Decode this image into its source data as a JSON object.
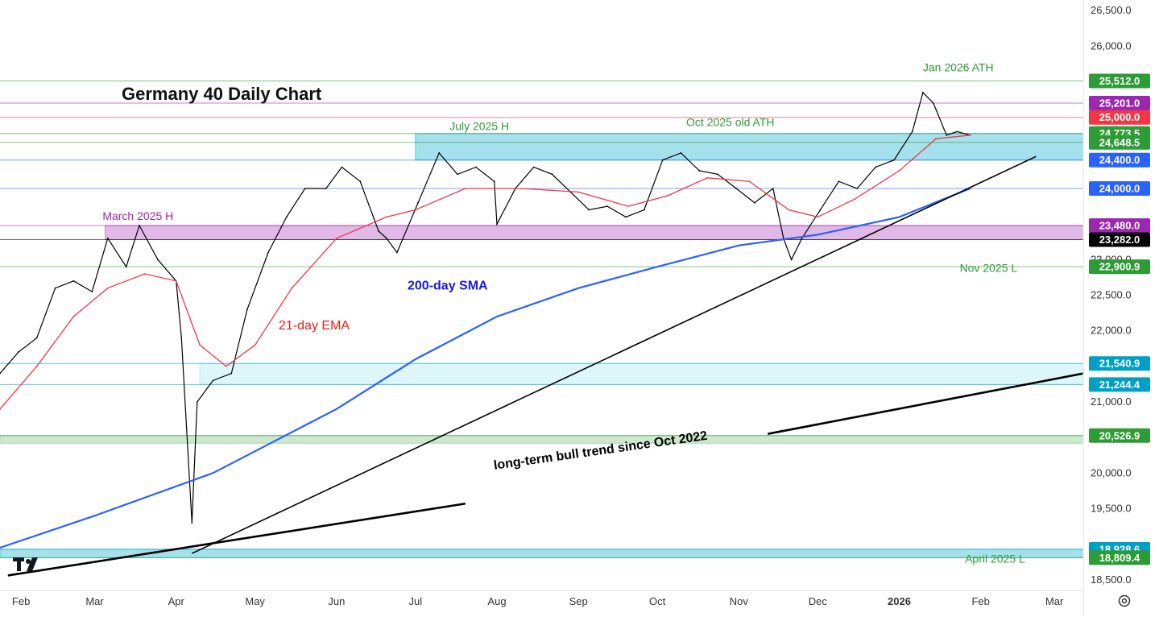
{
  "chart_data": {
    "type": "line",
    "title": "Germany 40 Daily Chart",
    "y_axis": {
      "ticks": [
        "26,500.0",
        "26,000.0",
        "25,500.0",
        "23,000.0",
        "22,500.0",
        "22,000.0",
        "21,000.0",
        "20,000.0",
        "19,500.0",
        "18,928.6",
        "18,500.0"
      ],
      "tick_values": [
        26500,
        26000,
        25500,
        23000,
        22500,
        22000,
        21000,
        20000,
        19500,
        18928.6,
        18500
      ],
      "ylim": [
        18350,
        26650
      ]
    },
    "x_axis": {
      "ticks": [
        "Feb",
        "Mar",
        "Apr",
        "May",
        "Jun",
        "Jul",
        "Aug",
        "Sep",
        "Oct",
        "Nov",
        "Dec",
        "2026",
        "Feb",
        "Mar"
      ],
      "bold_tick": "2026",
      "range": [
        "2025-01-24",
        "2026-03-12"
      ]
    },
    "price_labels": [
      {
        "text": "25,512.0",
        "value": 25512,
        "color": "#2e9c36"
      },
      {
        "text": "25,201.0",
        "value": 25201,
        "color": "#9c27b0"
      },
      {
        "text": "25,000.0",
        "value": 25000,
        "color": "#f23645"
      },
      {
        "text": "24,773.5",
        "value": 24773.5,
        "color": "#2e9c36"
      },
      {
        "text": "24,648.5",
        "value": 24648.5,
        "color": "#2e9c36"
      },
      {
        "text": "24,400.0",
        "value": 24400,
        "color": "#2962ff"
      },
      {
        "text": "24,000.0",
        "value": 24000,
        "color": "#2962ff"
      },
      {
        "text": "23,480.0",
        "value": 23480,
        "color": "#9c27b0"
      },
      {
        "text": "23,282.0",
        "value": 23282,
        "color": "#000000"
      },
      {
        "text": "22,900.9",
        "value": 22900.9,
        "color": "#2e9c36"
      },
      {
        "text": "21,540.9",
        "value": 21540.9,
        "color": "#00a0c6"
      },
      {
        "text": "21,244.4",
        "value": 21244.4,
        "color": "#00a0c6"
      },
      {
        "text": "20,526.9",
        "value": 20526.9,
        "color": "#2e9c36"
      },
      {
        "text": "18,928.6",
        "value": 18928.6,
        "color": "#00a0c6"
      },
      {
        "text": "18,809.4",
        "value": 18809.4,
        "color": "#2e9c36"
      }
    ],
    "zones": [
      {
        "name": "July 2025 H zone",
        "from_date": "2025-07-01",
        "y1": 24400,
        "y2": 24773.5,
        "color": "#5bc8dc"
      },
      {
        "name": "March 2025 H zone",
        "from_date": "2025-03-05",
        "y1": 23282,
        "y2": 23480,
        "color": "#c77fd2"
      },
      {
        "name": "support zone",
        "from_date": "2025-04-10",
        "y1": 21244.4,
        "y2": 21540.9,
        "color": "#bfeef5"
      },
      {
        "name": "green zone",
        "from_date": "2025-01-24",
        "y1": 20420,
        "y2": 20526.9,
        "color": "#a5d6a7"
      },
      {
        "name": "April low zone",
        "from_date": "2025-01-24",
        "y1": 18809.4,
        "y2": 18928.6,
        "color": "#5bc8dc"
      }
    ],
    "annotations": [
      {
        "text": "Jan 2026 ATH",
        "date": "2026-01-10",
        "value": 25650,
        "color": "#2e9c36"
      },
      {
        "text": "Oct 2025 old ATH",
        "date": "2025-10-12",
        "value": 24880,
        "color": "#2e9c36"
      },
      {
        "text": "July 2025 H",
        "date": "2025-07-14",
        "value": 24820,
        "color": "#2e9c36"
      },
      {
        "text": "March 2025 H",
        "date": "2025-03-04",
        "value": 23560,
        "color": "#9c27b0"
      },
      {
        "text": "Nov 2025 L",
        "date": "2026-01-24",
        "value": 22830,
        "color": "#2e9c36"
      },
      {
        "text": "April 2025 L",
        "date": "2026-01-26",
        "value": 18740,
        "color": "#2e9c36"
      },
      {
        "text": "200-day SMA",
        "date": "2025-06-28",
        "value": 22580,
        "color": "#1a1adb"
      },
      {
        "text": "21-day EMA",
        "date": "2025-05-10",
        "value": 22020,
        "color": "#e0201c"
      },
      {
        "text": "long-term bull trend since Oct 2022",
        "date": "2025-07-31",
        "value": 20050,
        "color": "#000000"
      }
    ],
    "series": [
      {
        "name": "price",
        "color": "#000000",
        "points": [
          [
            "2025-01-24",
            21400
          ],
          [
            "2025-01-31",
            21700
          ],
          [
            "2025-02-07",
            21900
          ],
          [
            "2025-02-14",
            22600
          ],
          [
            "2025-02-21",
            22700
          ],
          [
            "2025-02-28",
            22550
          ],
          [
            "2025-03-06",
            23300
          ],
          [
            "2025-03-13",
            22900
          ],
          [
            "2025-03-18",
            23480
          ],
          [
            "2025-03-25",
            23000
          ],
          [
            "2025-04-01",
            22700
          ],
          [
            "2025-04-03",
            21900
          ],
          [
            "2025-04-07",
            19300
          ],
          [
            "2025-04-09",
            21000
          ],
          [
            "2025-04-15",
            21300
          ],
          [
            "2025-04-22",
            21400
          ],
          [
            "2025-04-28",
            22300
          ],
          [
            "2025-05-06",
            23100
          ],
          [
            "2025-05-13",
            23600
          ],
          [
            "2025-05-20",
            24000
          ],
          [
            "2025-05-28",
            24000
          ],
          [
            "2025-06-03",
            24300
          ],
          [
            "2025-06-10",
            24100
          ],
          [
            "2025-06-17",
            23400
          ],
          [
            "2025-06-20",
            23300
          ],
          [
            "2025-06-24",
            23100
          ],
          [
            "2025-07-02",
            23800
          ],
          [
            "2025-07-10",
            24500
          ],
          [
            "2025-07-17",
            24200
          ],
          [
            "2025-07-24",
            24300
          ],
          [
            "2025-07-31",
            24100
          ],
          [
            "2025-08-01",
            23500
          ],
          [
            "2025-08-08",
            24000
          ],
          [
            "2025-08-15",
            24300
          ],
          [
            "2025-08-22",
            24200
          ],
          [
            "2025-08-29",
            23950
          ],
          [
            "2025-09-05",
            23700
          ],
          [
            "2025-09-12",
            23750
          ],
          [
            "2025-09-19",
            23600
          ],
          [
            "2025-09-26",
            23700
          ],
          [
            "2025-10-03",
            24400
          ],
          [
            "2025-10-10",
            24500
          ],
          [
            "2025-10-17",
            24250
          ],
          [
            "2025-10-24",
            24200
          ],
          [
            "2025-10-31",
            24000
          ],
          [
            "2025-11-07",
            23800
          ],
          [
            "2025-11-14",
            24000
          ],
          [
            "2025-11-18",
            23300
          ],
          [
            "2025-11-21",
            23000
          ],
          [
            "2025-11-25",
            23300
          ],
          [
            "2025-12-02",
            23700
          ],
          [
            "2025-12-09",
            24100
          ],
          [
            "2025-12-16",
            24000
          ],
          [
            "2025-12-23",
            24300
          ],
          [
            "2025-12-30",
            24400
          ],
          [
            "2026-01-06",
            24800
          ],
          [
            "2026-01-10",
            25350
          ],
          [
            "2026-01-14",
            25200
          ],
          [
            "2026-01-19",
            24750
          ],
          [
            "2026-01-23",
            24800
          ],
          [
            "2026-01-28",
            24750
          ]
        ]
      },
      {
        "name": "21-day EMA",
        "color": "#f23645",
        "points": [
          [
            "2025-01-24",
            20900
          ],
          [
            "2025-02-07",
            21500
          ],
          [
            "2025-02-21",
            22200
          ],
          [
            "2025-03-06",
            22600
          ],
          [
            "2025-03-20",
            22800
          ],
          [
            "2025-04-01",
            22700
          ],
          [
            "2025-04-10",
            21800
          ],
          [
            "2025-04-20",
            21500
          ],
          [
            "2025-05-01",
            21800
          ],
          [
            "2025-05-15",
            22600
          ],
          [
            "2025-06-01",
            23300
          ],
          [
            "2025-06-20",
            23600
          ],
          [
            "2025-07-01",
            23700
          ],
          [
            "2025-07-20",
            24000
          ],
          [
            "2025-08-10",
            24000
          ],
          [
            "2025-09-01",
            23950
          ],
          [
            "2025-09-20",
            23750
          ],
          [
            "2025-10-05",
            23900
          ],
          [
            "2025-10-20",
            24150
          ],
          [
            "2025-11-05",
            24100
          ],
          [
            "2025-11-20",
            23700
          ],
          [
            "2025-12-01",
            23600
          ],
          [
            "2025-12-15",
            23850
          ],
          [
            "2026-01-01",
            24250
          ],
          [
            "2026-01-15",
            24700
          ],
          [
            "2026-01-28",
            24750
          ]
        ]
      },
      {
        "name": "200-day SMA",
        "color": "#2962ff",
        "points": [
          [
            "2025-01-24",
            18950
          ],
          [
            "2025-03-01",
            19400
          ],
          [
            "2025-04-15",
            20000
          ],
          [
            "2025-06-01",
            20900
          ],
          [
            "2025-07-01",
            21600
          ],
          [
            "2025-08-01",
            22200
          ],
          [
            "2025-09-01",
            22600
          ],
          [
            "2025-10-01",
            22900
          ],
          [
            "2025-11-01",
            23200
          ],
          [
            "2025-12-01",
            23350
          ],
          [
            "2026-01-01",
            23600
          ],
          [
            "2026-01-28",
            24000
          ]
        ]
      }
    ],
    "trendlines": [
      {
        "from": [
          "2025-04-07",
          18870
        ],
        "to": [
          "2026-02-22",
          24450
        ],
        "color": "#000000"
      },
      {
        "from": [
          "2025-01-27",
          18560
        ],
        "to": [
          "2025-07-20",
          19570
        ],
        "color": "#000000"
      },
      {
        "from": [
          "2025-11-12",
          20550
        ],
        "to": [
          "2026-03-12",
          21400
        ],
        "color": "#000000"
      }
    ]
  }
}
